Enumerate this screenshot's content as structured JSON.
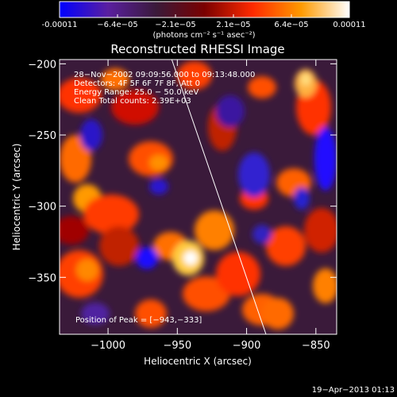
{
  "colorbar": {
    "ticks": [
      "-0.00011",
      "−6.4e−05",
      "−2.1e−05",
      "2.1e−05",
      "6.4e−05",
      "0.00011"
    ],
    "unit_label": "(photons cm⁻² s⁻¹ asec⁻²)",
    "stops": [
      "#0000ff",
      "#5a1fa0",
      "#3a1a3a",
      "#7a0000",
      "#ff2a00",
      "#ff9a00",
      "#ffffff"
    ]
  },
  "plot": {
    "title": "Reconstructed RHESSI Image",
    "info_lines": [
      "28−Nov−2002 09:09:56.000 to 09:13:48.000",
      "Detectors: 4F 5F 6F 7F 8F, Att 0",
      "Energy Range: 25.0 − 50.0 keV",
      "Clean     Total counts: 2.39E+03"
    ],
    "peak_label": "Position of Peak = [−943,−333]",
    "footer_date": "19−Apr−2013 01:13"
  },
  "chart_data": {
    "type": "heatmap",
    "title": "Reconstructed RHESSI Image",
    "xlabel": "Heliocentric X (arcsec)",
    "ylabel": "Heliocentric Y (arcsec)",
    "xlim": [
      -1035,
      -835
    ],
    "ylim": [
      -390,
      -197
    ],
    "xticks": [
      -1000,
      -950,
      -900,
      -850
    ],
    "yticks": [
      -350,
      -300,
      -250,
      -200
    ],
    "xtick_labels": [
      "−1000",
      "−950",
      "−900",
      "−850"
    ],
    "ytick_labels": [
      "−350",
      "−300",
      "−250",
      "−200"
    ],
    "colorbar_range": [
      -0.00011,
      0.00011
    ],
    "peak": [
      -943,
      -333
    ],
    "limb_line": [
      [
        -954,
        -197
      ],
      [
        -886,
        -390
      ]
    ]
  }
}
